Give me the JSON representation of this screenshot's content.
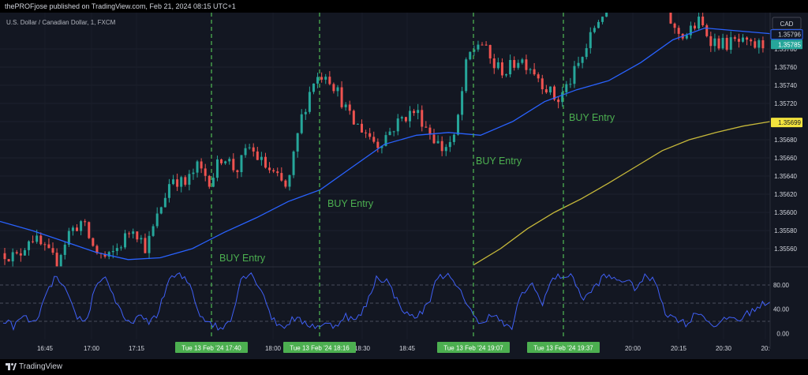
{
  "header": {
    "published": "thePROFjose published on TradingView.com, Feb 21, 2024 08:15 UTC+1"
  },
  "footer": {
    "brand": "TradingView"
  },
  "icons": {
    "logo": "tradingview-logo-icon"
  },
  "colors": {
    "background": "#131722",
    "bull": "#26a69a",
    "bear": "#ef5350",
    "ema_fast": "#2962ff",
    "ema_slow": "#c6b83a",
    "oscillator": "#3f5ff5",
    "signal": "#4caf50",
    "last_price_bg": "#26a69a",
    "ema_slow_label_bg": "#f3e33d"
  },
  "chart_data": {
    "type": "candlestick",
    "symbol_line": "U.S. Dollar / Canadian Dollar, 1, FXCM",
    "currency": "CAD",
    "price_axis": {
      "ticks": [
        "1.35780",
        "1.35760",
        "1.35740",
        "1.35720",
        "1.35700",
        "1.35680",
        "1.35660",
        "1.35640",
        "1.35620",
        "1.35600",
        "1.35580",
        "1.35560"
      ],
      "range": [
        1.3554,
        1.3582
      ]
    },
    "time_axis": {
      "ticks": [
        "16:45",
        "17:00",
        "17:15",
        "18:00",
        "18:30",
        "18:45",
        "20:00",
        "20:15",
        "20:30",
        "20:"
      ],
      "highlight_labels": [
        "Tue 13 Feb '24   17:40",
        "Tue 13 Feb '24   18:16",
        "Tue 13 Feb '24   19:07",
        "Tue 13 Feb '24   19:37"
      ]
    },
    "price_labels": {
      "ema_fast": "1.35796",
      "last_price": "1.35785",
      "ema_slow": "1.35699"
    },
    "annotations": [
      "BUY Entry",
      "BUY Entry",
      "BUY Entry",
      "BUY Entry"
    ],
    "oscillator": {
      "ticks": [
        "80.00",
        "40.00",
        "0.00"
      ],
      "range": [
        -10,
        110
      ],
      "levels": [
        80,
        50,
        20
      ]
    },
    "candle_waypoints": [
      1.35555,
      1.3555,
      1.35575,
      1.3556,
      1.35545,
      1.35578,
      1.3559,
      1.35558,
      1.35548,
      1.35565,
      1.35585,
      1.3556,
      1.356,
      1.3564,
      1.3563,
      1.3565,
      1.35635,
      1.35665,
      1.35645,
      1.35672,
      1.35655,
      1.3564,
      1.35625,
      1.357,
      1.35745,
      1.35755,
      1.3573,
      1.357,
      1.3569,
      1.35675,
      1.3569,
      1.35705,
      1.35712,
      1.3569,
      1.3567,
      1.3568,
      1.3577,
      1.3579,
      1.35762,
      1.35755,
      1.3577,
      1.3576,
      1.3574,
      1.35722,
      1.35745,
      1.35772,
      1.35808,
      1.3583,
      1.3585,
      1.3586,
      1.3588,
      1.3586,
      1.358,
      1.35795,
      1.3581,
      1.3579,
      1.35785,
      1.35788,
      1.35782,
      1.35785
    ],
    "ema_fast_points": [
      1.3559,
      1.3558,
      1.35568,
      1.35556,
      1.35548,
      1.3555,
      1.3556,
      1.35578,
      1.35594,
      1.35612,
      1.35625,
      1.3565,
      1.35675,
      1.35685,
      1.35688,
      1.35685,
      1.357,
      1.35722,
      1.35735,
      1.35745,
      1.35765,
      1.3579,
      1.35803,
      1.358,
      1.35797,
      1.35795
    ],
    "ema_slow_points": [
      1.35542,
      1.3556,
      1.35582,
      1.356,
      1.35615,
      1.35632,
      1.3565,
      1.35668,
      1.3568,
      1.35688,
      1.35695,
      1.357
    ],
    "oscillator_waypoints": [
      22,
      12,
      28,
      15,
      55,
      95,
      70,
      30,
      18,
      85,
      92,
      45,
      15,
      28,
      18,
      35,
      90,
      96,
      82,
      30,
      18,
      6,
      25,
      94,
      99,
      70,
      22,
      10,
      25,
      18,
      12,
      15,
      12,
      30,
      20,
      45,
      92,
      88,
      55,
      30,
      28,
      48,
      98,
      94,
      70,
      45,
      10,
      35,
      20,
      5,
      65,
      82,
      50,
      90,
      96,
      92,
      55,
      75,
      95,
      90,
      88,
      75,
      94,
      85,
      30,
      25,
      15,
      38,
      20,
      12,
      28,
      22,
      35,
      45,
      55
    ]
  }
}
